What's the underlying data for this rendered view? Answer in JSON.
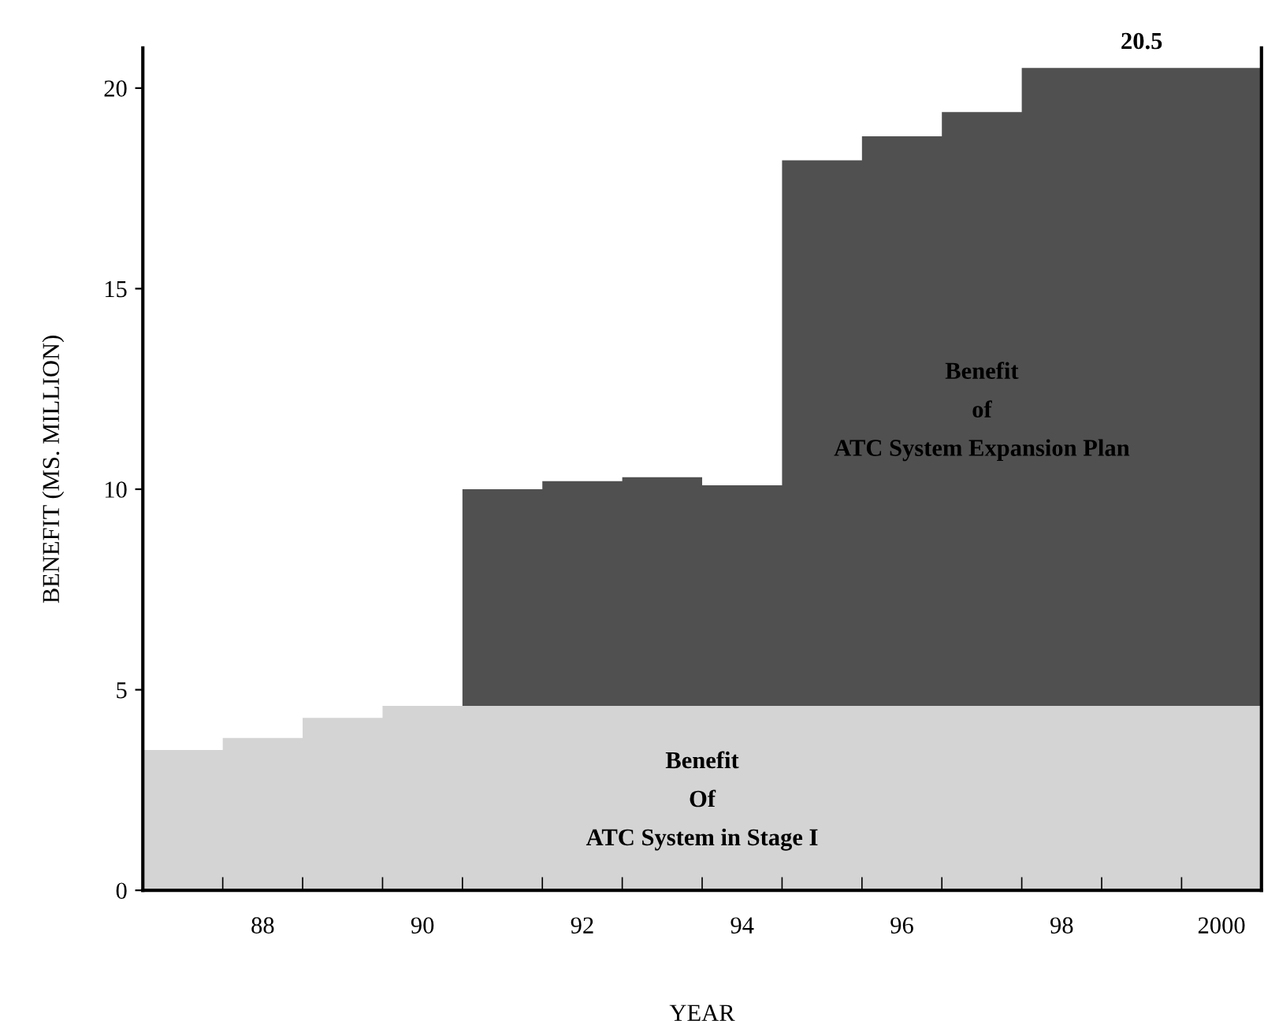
{
  "chart_data": {
    "type": "area",
    "stacked": true,
    "xlabel": "YEAR",
    "ylabel": "BENEFIT (MS. MILLION)",
    "x": [
      1986.5,
      1987.5,
      1988.5,
      1989.5,
      1990.5,
      1991.5,
      1992.5,
      1993.5,
      1994.5,
      1995.5,
      1996.5,
      1997.5,
      1998.5,
      1999.5,
      2000.5
    ],
    "series": [
      {
        "color": "#d4d4d4",
        "values": [
          3.5,
          3.8,
          4.3,
          4.6,
          4.6,
          4.6,
          4.6,
          4.6,
          4.6,
          4.6,
          4.6,
          4.6,
          4.6,
          4.6,
          4.6
        ]
      },
      {
        "color": "#505050",
        "values": [
          null,
          null,
          null,
          null,
          5.4,
          5.6,
          5.7,
          5.5,
          13.6,
          14.2,
          14.8,
          15.9,
          15.9,
          15.9,
          15.9
        ]
      }
    ],
    "totals": [
      null,
      null,
      null,
      null,
      null,
      null,
      null,
      null,
      null,
      null,
      null,
      null,
      "20.5",
      null,
      null
    ],
    "annotations": [
      "Benefit\nOf\nATC System in Stage I",
      "Benefit\nof\nATC System Expansion Plan"
    ],
    "xlim": [
      1986.5,
      2000.5
    ],
    "xticks": [
      {
        "value": 1987.5,
        "label": null
      },
      {
        "value": 1988,
        "label": "88"
      },
      {
        "value": 1988.5,
        "label": null
      },
      {
        "value": 1989.5,
        "label": null
      },
      {
        "value": 1990,
        "label": "90"
      },
      {
        "value": 1990.5,
        "label": null
      },
      {
        "value": 1991.5,
        "label": null
      },
      {
        "value": 1992,
        "label": "92"
      },
      {
        "value": 1992.5,
        "label": null
      },
      {
        "value": 1993.5,
        "label": null
      },
      {
        "value": 1994,
        "label": "94"
      },
      {
        "value": 1994.5,
        "label": null
      },
      {
        "value": 1995.5,
        "label": null
      },
      {
        "value": 1996,
        "label": "96"
      },
      {
        "value": 1996.5,
        "label": null
      },
      {
        "value": 1997.5,
        "label": null
      },
      {
        "value": 1998,
        "label": "98"
      },
      {
        "value": 1998.5,
        "label": null
      },
      {
        "value": 1999.5,
        "label": null
      },
      2000
    ],
    "ylim": [
      0,
      21
    ],
    "yticks": [
      0,
      5,
      10,
      15,
      20
    ],
    "grid": false,
    "legend": false
  }
}
